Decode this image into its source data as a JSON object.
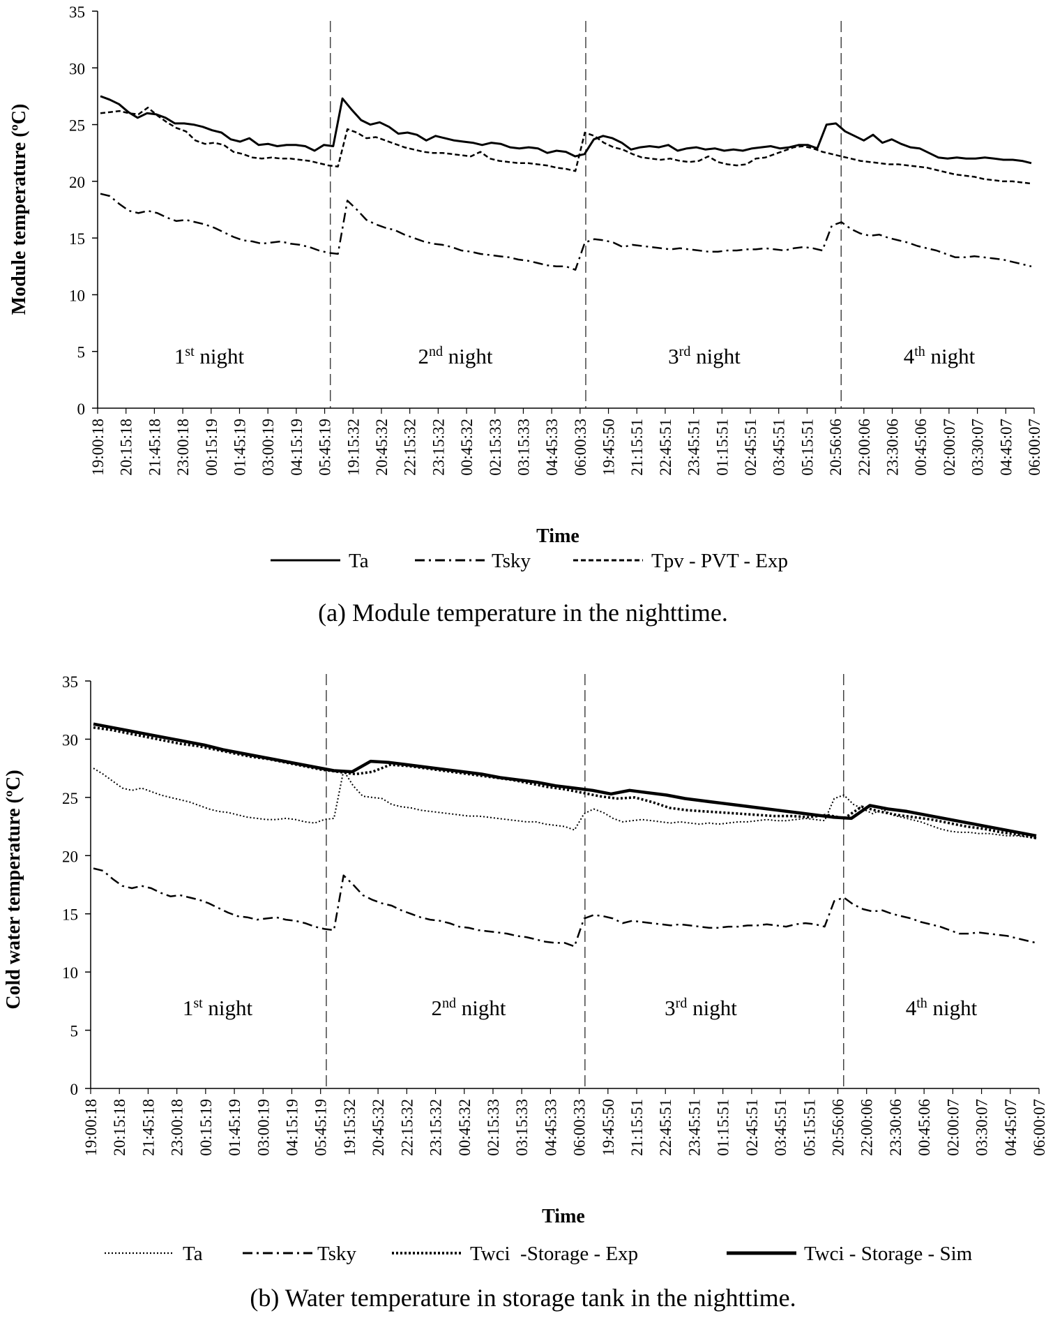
{
  "x_tick_labels": [
    "19:00:18",
    "20:15:18",
    "21:45:18",
    "23:00:18",
    "00:15:19",
    "01:45:19",
    "03:00:19",
    "04:15:19",
    "05:45:19",
    "19:15:32",
    "20:45:32",
    "22:15:32",
    "23:15:32",
    "00:45:32",
    "02:15:33",
    "03:15:33",
    "04:45:33",
    "06:00:33",
    "19:45:50",
    "21:15:51",
    "22:45:51",
    "23:45:51",
    "01:15:51",
    "02:45:51",
    "03:45:51",
    "05:15:51",
    "20:56:06",
    "22:00:06",
    "23:30:06",
    "00:45:06",
    "02:00:07",
    "03:30:07",
    "04:45:07",
    "06:00:07"
  ],
  "nights": [
    {
      "num": "1",
      "sup": "st",
      "word": " night"
    },
    {
      "num": "2",
      "sup": "nd",
      "word": " night"
    },
    {
      "num": "3",
      "sup": "rd",
      "word": " night"
    },
    {
      "num": "4",
      "sup": "th",
      "word": " night"
    }
  ],
  "chart_data": [
    {
      "type": "line",
      "title": "(a) Module temperature in the nighttime.",
      "xlabel": "Time",
      "ylabel": "Module temperature (ºC)",
      "ylim": [
        0,
        35
      ],
      "yticks": [
        0,
        5,
        10,
        15,
        20,
        25,
        30,
        35
      ],
      "night_boundaries_index": [
        8.2,
        17.2,
        26.2
      ],
      "series": [
        {
          "name": "Ta",
          "style": "solid",
          "values": [
            27.5,
            27.2,
            26.8,
            26.1,
            25.6,
            26.0,
            25.9,
            25.6,
            25.1,
            25.1,
            25.0,
            24.8,
            24.5,
            24.3,
            23.7,
            23.5,
            23.8,
            23.2,
            23.3,
            23.1,
            23.2,
            23.2,
            23.1,
            22.7,
            23.2,
            23.1,
            27.3,
            26.3,
            25.4,
            25.0,
            25.2,
            24.8,
            24.2,
            24.3,
            24.1,
            23.6,
            24.0,
            23.8,
            23.6,
            23.5,
            23.4,
            23.2,
            23.4,
            23.3,
            23.0,
            22.9,
            23.0,
            22.9,
            22.5,
            22.7,
            22.6,
            22.2,
            22.4,
            23.7,
            24.0,
            23.8,
            23.4,
            22.8,
            23.0,
            23.1,
            23.0,
            23.2,
            22.7,
            22.9,
            23.0,
            22.8,
            22.9,
            22.7,
            22.8,
            22.7,
            22.9,
            23.0,
            23.1,
            22.9,
            23.0,
            23.2,
            23.2,
            22.9,
            25.0,
            25.1,
            24.4,
            24.0,
            23.6,
            24.1,
            23.4,
            23.7,
            23.3,
            23.0,
            22.9,
            22.5,
            22.1,
            22.0,
            22.1,
            22.0,
            22.0,
            22.1,
            22.0,
            21.9,
            21.9,
            21.8,
            21.6
          ]
        },
        {
          "name": "Tsky",
          "style": "dashdot",
          "values": [
            18.9,
            18.7,
            18.0,
            17.4,
            17.2,
            17.4,
            17.2,
            16.8,
            16.5,
            16.6,
            16.4,
            16.2,
            15.9,
            15.5,
            15.1,
            14.8,
            14.7,
            14.5,
            14.6,
            14.7,
            14.5,
            14.4,
            14.2,
            13.9,
            13.7,
            13.6,
            18.3,
            17.5,
            16.6,
            16.2,
            15.9,
            15.7,
            15.3,
            15.0,
            14.7,
            14.5,
            14.4,
            14.2,
            13.9,
            13.8,
            13.6,
            13.5,
            13.4,
            13.3,
            13.1,
            13.0,
            12.8,
            12.6,
            12.5,
            12.5,
            12.2,
            14.6,
            14.9,
            14.8,
            14.6,
            14.2,
            14.4,
            14.3,
            14.2,
            14.1,
            14.0,
            14.1,
            14.0,
            13.9,
            13.8,
            13.8,
            13.9,
            13.9,
            14.0,
            14.0,
            14.1,
            14.0,
            13.9,
            14.1,
            14.2,
            14.1,
            13.9,
            16.1,
            16.4,
            15.8,
            15.4,
            15.2,
            15.3,
            15.0,
            14.8,
            14.6,
            14.3,
            14.1,
            13.9,
            13.6,
            13.3,
            13.3,
            13.4,
            13.3,
            13.2,
            13.1,
            12.9,
            12.7,
            12.5
          ]
        },
        {
          "name": "Tpv - PVT - Exp",
          "style": "dashed",
          "values": [
            26.0,
            26.1,
            26.2,
            26.0,
            25.9,
            26.5,
            25.8,
            25.2,
            24.7,
            24.4,
            23.6,
            23.3,
            23.4,
            23.2,
            22.6,
            22.4,
            22.1,
            22.0,
            22.1,
            22.0,
            22.0,
            21.9,
            21.8,
            21.6,
            21.4,
            21.3,
            24.6,
            24.3,
            23.8,
            23.9,
            23.6,
            23.3,
            23.0,
            22.8,
            22.6,
            22.5,
            22.5,
            22.4,
            22.3,
            22.2,
            22.6,
            22.0,
            21.8,
            21.7,
            21.6,
            21.6,
            21.5,
            21.4,
            21.2,
            21.1,
            20.9,
            24.3,
            24.0,
            23.4,
            23.0,
            22.8,
            22.4,
            22.1,
            22.0,
            21.9,
            22.0,
            21.8,
            21.7,
            21.8,
            22.2,
            21.7,
            21.5,
            21.4,
            21.5,
            22.0,
            22.1,
            22.4,
            22.7,
            23.0,
            23.1,
            22.9,
            22.6,
            22.4,
            22.2,
            22.0,
            21.8,
            21.7,
            21.6,
            21.5,
            21.5,
            21.4,
            21.3,
            21.2,
            21.0,
            20.8,
            20.6,
            20.5,
            20.4,
            20.2,
            20.1,
            20.0,
            20.0,
            19.9,
            19.8
          ]
        }
      ],
      "legend": {
        "placement": "bottom",
        "entries": [
          "Ta",
          "Tsky",
          "Tpv - PVT - Exp"
        ]
      }
    },
    {
      "type": "line",
      "title": "(b) Water temperature in storage tank in the nighttime.",
      "xlabel": "Time",
      "ylabel": "Cold water temperature (ºC)",
      "ylim": [
        0,
        35
      ],
      "yticks": [
        0,
        5,
        10,
        15,
        20,
        25,
        30,
        35
      ],
      "night_boundaries_index": [
        8.2,
        17.2,
        26.2
      ],
      "series": [
        {
          "name": "Ta",
          "style": "dotted-thin",
          "values": [
            27.5,
            27.0,
            26.4,
            25.8,
            25.6,
            25.8,
            25.5,
            25.2,
            25.0,
            24.8,
            24.6,
            24.3,
            24.0,
            23.8,
            23.7,
            23.5,
            23.3,
            23.2,
            23.1,
            23.1,
            23.2,
            23.1,
            22.9,
            22.8,
            23.1,
            23.2,
            27.3,
            26.0,
            25.1,
            25.0,
            24.9,
            24.4,
            24.2,
            24.1,
            23.9,
            23.8,
            23.7,
            23.6,
            23.5,
            23.4,
            23.4,
            23.3,
            23.2,
            23.1,
            23.0,
            22.9,
            22.9,
            22.7,
            22.6,
            22.5,
            22.2,
            23.6,
            24.0,
            23.7,
            23.2,
            22.9,
            23.0,
            23.1,
            23.0,
            22.9,
            22.8,
            22.9,
            22.8,
            22.7,
            22.8,
            22.7,
            22.8,
            22.9,
            22.9,
            23.0,
            23.1,
            23.0,
            23.0,
            23.1,
            23.2,
            23.1,
            23.0,
            24.9,
            25.2,
            24.4,
            24.0,
            23.6,
            24.0,
            23.5,
            23.3,
            23.1,
            22.9,
            22.6,
            22.3,
            22.1,
            22.0,
            22.0,
            21.9,
            21.9,
            21.8,
            21.7,
            21.7,
            21.6,
            21.5
          ]
        },
        {
          "name": "Tsky",
          "style": "dashdot",
          "values": [
            18.9,
            18.7,
            18.0,
            17.4,
            17.2,
            17.4,
            17.2,
            16.8,
            16.5,
            16.6,
            16.4,
            16.2,
            15.9,
            15.5,
            15.1,
            14.8,
            14.7,
            14.5,
            14.6,
            14.7,
            14.5,
            14.4,
            14.2,
            13.9,
            13.7,
            13.6,
            18.3,
            17.5,
            16.6,
            16.2,
            15.9,
            15.7,
            15.3,
            15.0,
            14.7,
            14.5,
            14.4,
            14.2,
            13.9,
            13.8,
            13.6,
            13.5,
            13.4,
            13.3,
            13.1,
            13.0,
            12.8,
            12.6,
            12.5,
            12.5,
            12.2,
            14.6,
            14.9,
            14.8,
            14.6,
            14.2,
            14.4,
            14.3,
            14.2,
            14.1,
            14.0,
            14.1,
            14.0,
            13.9,
            13.8,
            13.8,
            13.9,
            13.9,
            14.0,
            14.0,
            14.1,
            14.0,
            13.9,
            14.1,
            14.2,
            14.1,
            13.9,
            16.1,
            16.4,
            15.8,
            15.4,
            15.2,
            15.3,
            15.0,
            14.8,
            14.6,
            14.3,
            14.1,
            13.9,
            13.6,
            13.3,
            13.3,
            13.4,
            13.3,
            13.2,
            13.1,
            12.9,
            12.7,
            12.5
          ]
        },
        {
          "name": "Twci  -Storage - Exp",
          "style": "dotted-thick",
          "values": [
            31.0,
            30.8,
            30.5,
            30.2,
            29.9,
            29.6,
            29.4,
            29.1,
            28.8,
            28.5,
            28.3,
            28.0,
            27.7,
            27.4,
            27.2,
            27.0,
            27.2,
            27.8,
            27.7,
            27.5,
            27.3,
            27.1,
            26.9,
            26.7,
            26.5,
            26.2,
            25.9,
            25.7,
            25.4,
            25.1,
            24.9,
            25.0,
            24.6,
            24.1,
            23.9,
            23.8,
            23.7,
            23.6,
            23.5,
            23.4,
            23.4,
            23.3,
            23.5,
            23.2,
            24.2,
            23.8,
            23.5,
            23.3,
            23.1,
            22.8,
            22.5,
            22.3,
            22.0,
            21.8,
            21.5
          ]
        },
        {
          "name": "Twci - Storage - Sim",
          "style": "solid-thick",
          "values": [
            31.3,
            31.0,
            30.7,
            30.4,
            30.1,
            29.8,
            29.5,
            29.1,
            28.8,
            28.5,
            28.2,
            27.9,
            27.6,
            27.3,
            27.2,
            28.1,
            28.0,
            27.8,
            27.6,
            27.4,
            27.2,
            27.0,
            26.7,
            26.5,
            26.3,
            26.0,
            25.8,
            25.6,
            25.3,
            25.6,
            25.4,
            25.2,
            24.9,
            24.7,
            24.5,
            24.3,
            24.1,
            23.9,
            23.7,
            23.5,
            23.3,
            23.2,
            24.3,
            24.0,
            23.8,
            23.5,
            23.2,
            22.9,
            22.6,
            22.3,
            22.0,
            21.7
          ]
        }
      ],
      "legend": {
        "placement": "bottom",
        "entries": [
          "Ta",
          "Tsky",
          "Twci  -Storage - Exp",
          "Twci - Storage - Sim"
        ]
      }
    }
  ]
}
